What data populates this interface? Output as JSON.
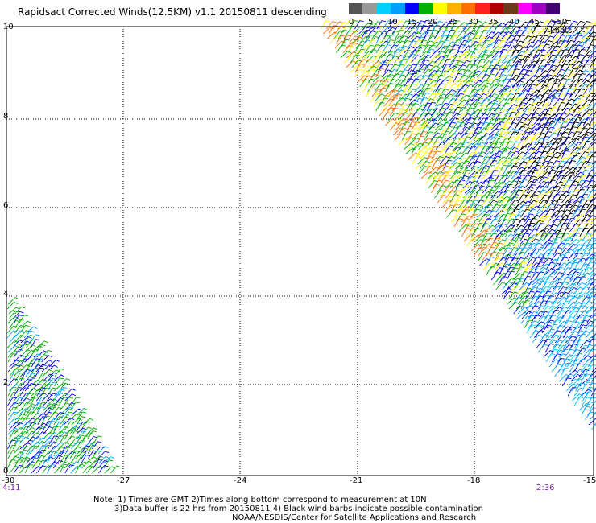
{
  "title": "Rapidsact Corrected Winds(12.5KM) v1.1 20150811 descending",
  "legend": {
    "labels": [
      "0",
      "5",
      "10",
      "15",
      "20",
      "25",
      "30",
      "35",
      "40",
      "45",
      ">50 knots"
    ],
    "colors": [
      "#555555",
      "#999999",
      "#00cfff",
      "#00a0ff",
      "#0000ff",
      "#00b000",
      "#ffff00",
      "#ffb000",
      "#ff7000",
      "#ff2020",
      "#b00000",
      "#6a3a1a",
      "#ff00ff",
      "#a000c0",
      "#400070"
    ]
  },
  "axes": {
    "x_ticks": [
      "-30",
      "-27",
      "-24",
      "-21",
      "-18",
      "-15"
    ],
    "y_ticks": [
      "0",
      "2",
      "4",
      "6",
      "8",
      "10"
    ]
  },
  "times": {
    "left": "4:11",
    "right": "2:36"
  },
  "notes": [
    "Note: 1) Times are GMT 2)Times along bottom correspond to measurement at 10N",
    "3)Data buffer is 22 hrs from 20150811 4) Black wind barbs indicate possible contamination",
    "NOAA/NESDIS/Center for Satellite Applications and Research"
  ],
  "colors": {
    "grid": "#000000",
    "time": "#7a1fa0"
  }
}
